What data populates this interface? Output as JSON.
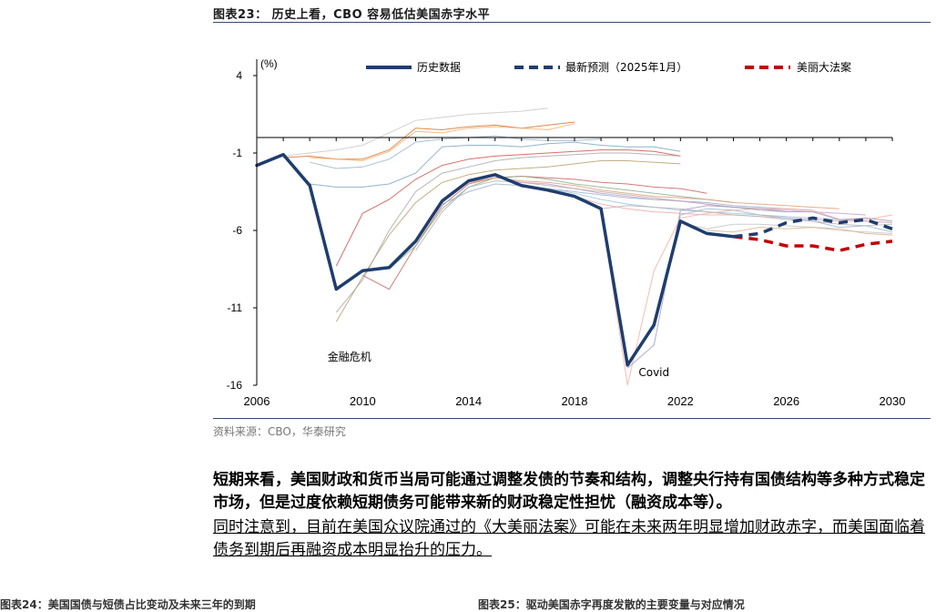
{
  "figure": {
    "title": "图表23： 历史上看，CBO 容易低估美国赤字水平",
    "source": "资料来源：CBO，华泰研究"
  },
  "chart_data": {
    "type": "line",
    "title": "历史上看，CBO 容易低估美国赤字水平",
    "ylabel": "(%)",
    "xlim": [
      2006,
      2030
    ],
    "ylim": [
      -16,
      5
    ],
    "x_ticks": [
      2006,
      2010,
      2014,
      2018,
      2022,
      2026,
      2030
    ],
    "y_ticks": [
      4,
      -1,
      -6,
      -11,
      -16
    ],
    "legend": [
      {
        "name": "历史数据",
        "color": "#1f3d6e",
        "style": "solid"
      },
      {
        "name": "最新预测（2025年1月）",
        "color": "#1f3d6e",
        "style": "dashed"
      },
      {
        "name": "美丽大法案",
        "color": "#c00000",
        "style": "dashed"
      }
    ],
    "annotations": [
      {
        "text": "金融危机",
        "x": 2009.5,
        "y": -14.4
      },
      {
        "text": "Covid",
        "x": 2021,
        "y": -15.4
      }
    ],
    "series": [
      {
        "name": "历史数据",
        "x": [
          2006,
          2007,
          2008,
          2009,
          2010,
          2011,
          2012,
          2013,
          2014,
          2015,
          2016,
          2017,
          2018,
          2019,
          2020,
          2021,
          2022,
          2023,
          2024
        ],
        "values": [
          -1.8,
          -1.1,
          -3.1,
          -9.8,
          -8.6,
          -8.4,
          -6.7,
          -4.1,
          -2.8,
          -2.4,
          -3.1,
          -3.4,
          -3.8,
          -4.6,
          -14.7,
          -12.1,
          -5.4,
          -6.2,
          -6.4
        ]
      },
      {
        "name": "最新预测（2025年1月）",
        "x": [
          2024,
          2025,
          2026,
          2027,
          2028,
          2029,
          2030
        ],
        "values": [
          -6.4,
          -6.2,
          -5.5,
          -5.2,
          -5.5,
          -5.3,
          -5.9
        ]
      },
      {
        "name": "美丽大法案",
        "x": [
          2024,
          2025,
          2026,
          2027,
          2028,
          2029,
          2030
        ],
        "values": [
          -6.4,
          -6.6,
          -7.0,
          -7.0,
          -7.3,
          -6.9,
          -6.7
        ]
      }
    ],
    "historical_forecasts": [
      {
        "x": [
          2007,
          2008,
          2009,
          2010,
          2011,
          2012,
          2013,
          2014,
          2015,
          2016,
          2017
        ],
        "values": [
          -1.2,
          -1.0,
          -0.8,
          -0.5,
          0.3,
          1.1,
          1.3,
          1.5,
          1.6,
          1.7,
          1.9
        ],
        "color": "#c8c8c8"
      },
      {
        "x": [
          2007,
          2008,
          2009,
          2010,
          2011,
          2012,
          2013,
          2014,
          2015,
          2016,
          2017,
          2018
        ],
        "values": [
          -1.3,
          -1.2,
          -1.4,
          -1.4,
          -0.8,
          0.6,
          0.5,
          0.7,
          0.8,
          0.6,
          0.8,
          1.0
        ],
        "color": "#e0712b"
      },
      {
        "x": [
          2008,
          2009,
          2010,
          2011,
          2012,
          2013,
          2014,
          2015,
          2016,
          2017,
          2018
        ],
        "values": [
          -1.3,
          -1.4,
          -1.5,
          -0.9,
          0.4,
          0.3,
          0.6,
          0.7,
          0.6,
          0.5,
          0.9
        ],
        "color": "#f0b26e"
      },
      {
        "x": [
          2008,
          2009,
          2010,
          2011,
          2012,
          2013,
          2014,
          2015,
          2016,
          2017,
          2018,
          2019
        ],
        "values": [
          -1.6,
          -2.0,
          -1.9,
          -1.4,
          -0.3,
          -0.1,
          0.0,
          0.1,
          -0.1,
          -0.2,
          -0.2,
          -0.1
        ],
        "color": "#9bb5c8"
      },
      {
        "x": [
          2008,
          2009,
          2010,
          2011,
          2012,
          2013,
          2014,
          2015,
          2016,
          2017,
          2018,
          2019,
          2020,
          2021,
          2022
        ],
        "values": [
          -3.0,
          -3.2,
          -3.2,
          -3.0,
          -2.3,
          -0.6,
          -0.5,
          -0.5,
          -0.6,
          -0.4,
          -0.3,
          -0.5,
          -0.6,
          -0.6,
          -0.9
        ],
        "color": "#7fa7c2"
      },
      {
        "x": [
          2009,
          2010,
          2011,
          2012,
          2013,
          2014,
          2015,
          2016,
          2017,
          2018,
          2019,
          2020,
          2021,
          2022
        ],
        "values": [
          -8.3,
          -4.9,
          -4.0,
          -2.7,
          -1.8,
          -1.4,
          -1.2,
          -1.1,
          -1.0,
          -0.9,
          -0.8,
          -0.8,
          -0.9,
          -1.2
        ],
        "color": "#d4554d"
      },
      {
        "x": [
          2009,
          2010,
          2011,
          2012,
          2013,
          2014,
          2015,
          2016,
          2017,
          2018,
          2019,
          2020,
          2021,
          2022
        ],
        "values": [
          -11.3,
          -9.2,
          -6.0,
          -3.5,
          -2.3,
          -1.9,
          -1.5,
          -1.3,
          -1.2,
          -1.1,
          -1.0,
          -1.0,
          -1.1,
          -1.2
        ],
        "color": "#a9a9a9"
      },
      {
        "x": [
          2009,
          2010,
          2011,
          2012,
          2013,
          2014,
          2015,
          2016,
          2017,
          2018,
          2019,
          2020,
          2021,
          2022
        ],
        "values": [
          -11.9,
          -9.0,
          -6.3,
          -4.2,
          -2.9,
          -2.4,
          -2.1,
          -2.0,
          -1.9,
          -1.7,
          -1.5,
          -1.5,
          -1.6,
          -1.7
        ],
        "color": "#b9a26d"
      },
      {
        "x": [
          2010,
          2011,
          2012,
          2013,
          2014,
          2015,
          2016,
          2017,
          2018,
          2019,
          2020,
          2021,
          2022,
          2023
        ],
        "values": [
          -8.9,
          -9.8,
          -7.0,
          -4.4,
          -3.0,
          -2.6,
          -2.5,
          -2.6,
          -2.7,
          -2.9,
          -3.0,
          -3.2,
          -3.3,
          -3.6
        ],
        "color": "#c86464"
      },
      {
        "x": [
          2011,
          2012,
          2013,
          2014,
          2015,
          2016,
          2017,
          2018,
          2019,
          2020,
          2021,
          2022,
          2023,
          2024
        ],
        "values": [
          -8.5,
          -7.0,
          -4.6,
          -3.2,
          -2.6,
          -2.5,
          -2.7,
          -3.0,
          -3.2,
          -3.4,
          -3.6,
          -3.8,
          -4.0,
          -4.2
        ],
        "color": "#8cb08c"
      },
      {
        "x": [
          2012,
          2013,
          2014,
          2015,
          2016,
          2017,
          2018,
          2019,
          2020,
          2021,
          2022,
          2023,
          2024,
          2025,
          2026
        ],
        "values": [
          -7.3,
          -4.8,
          -3.2,
          -2.8,
          -2.9,
          -3.1,
          -3.3,
          -3.5,
          -3.7,
          -3.9,
          -4.1,
          -4.3,
          -4.5,
          -4.7,
          -4.8
        ],
        "color": "#b4b4b4"
      },
      {
        "x": [
          2013,
          2014,
          2015,
          2016,
          2017,
          2018,
          2019,
          2020,
          2021,
          2022,
          2023,
          2024,
          2025,
          2026,
          2027
        ],
        "values": [
          -4.3,
          -3.5,
          -3.0,
          -3.1,
          -3.3,
          -3.5,
          -3.7,
          -3.9,
          -4.0,
          -4.1,
          -4.2,
          -4.4,
          -4.5,
          -4.6,
          -4.7
        ],
        "color": "#9fb0cc"
      },
      {
        "x": [
          2014,
          2015,
          2016,
          2017,
          2018,
          2019,
          2020,
          2021,
          2022,
          2023,
          2024,
          2025,
          2026,
          2027,
          2028
        ],
        "values": [
          -2.9,
          -2.6,
          -2.8,
          -2.9,
          -3.1,
          -3.4,
          -3.6,
          -3.8,
          -3.9,
          -4.0,
          -4.2,
          -4.3,
          -4.4,
          -4.5,
          -4.6
        ],
        "color": "#e3a07a"
      },
      {
        "x": [
          2015,
          2016,
          2017,
          2018,
          2019,
          2020,
          2021,
          2022,
          2023,
          2024,
          2025,
          2026,
          2027,
          2028,
          2029
        ],
        "values": [
          -2.5,
          -2.9,
          -3.0,
          -3.3,
          -3.6,
          -3.8,
          -4.0,
          -4.1,
          -4.3,
          -4.5,
          -4.6,
          -4.7,
          -4.8,
          -4.9,
          -5.0
        ],
        "color": "#c9a0c9"
      },
      {
        "x": [
          2016,
          2017,
          2018,
          2019,
          2020,
          2021,
          2022,
          2023,
          2024,
          2025,
          2026,
          2027,
          2028,
          2029,
          2030
        ],
        "values": [
          -3.2,
          -3.3,
          -3.6,
          -4.0,
          -4.3,
          -4.5,
          -4.7,
          -4.8,
          -4.9,
          -5.0,
          -5.1,
          -5.2,
          -5.3,
          -5.4,
          -5.5
        ],
        "color": "#a0c4d8"
      },
      {
        "x": [
          2017,
          2018,
          2019,
          2020,
          2021,
          2022,
          2023,
          2024,
          2025,
          2026,
          2027,
          2028,
          2029,
          2030
        ],
        "values": [
          -3.5,
          -3.8,
          -4.3,
          -4.6,
          -4.8,
          -4.9,
          -5.0,
          -5.0,
          -5.1,
          -5.2,
          -5.3,
          -5.4,
          -5.4,
          -5.5
        ],
        "color": "#f0a8a8"
      },
      {
        "x": [
          2018,
          2019,
          2020,
          2021,
          2022,
          2023,
          2024,
          2025,
          2026,
          2027,
          2028,
          2029,
          2030
        ],
        "values": [
          -3.9,
          -4.6,
          -4.4,
          -4.5,
          -4.6,
          -4.8,
          -5.0,
          -5.1,
          -5.3,
          -5.4,
          -5.6,
          -5.7,
          -5.6
        ],
        "color": "#b7b7b7"
      },
      {
        "x": [
          2019,
          2020,
          2021,
          2022,
          2023,
          2024,
          2025,
          2026,
          2027,
          2028,
          2029,
          2030
        ],
        "values": [
          -4.6,
          -16.0,
          -8.6,
          -5.2,
          -4.9,
          -4.7,
          -4.6,
          -4.6,
          -4.7,
          -5.3,
          -5.3,
          -5.0
        ],
        "color": "#f2b2a6"
      },
      {
        "x": [
          2020,
          2021,
          2022,
          2023,
          2024,
          2025,
          2026,
          2027,
          2028,
          2029,
          2030
        ],
        "values": [
          -14.9,
          -13.4,
          -4.7,
          -4.4,
          -4.5,
          -4.6,
          -4.8,
          -4.8,
          -5.3,
          -5.2,
          -5.4
        ],
        "color": "#a89ac0"
      },
      {
        "x": [
          2021,
          2022,
          2023,
          2024,
          2025,
          2026,
          2027,
          2028,
          2029,
          2030
        ],
        "values": [
          -12.4,
          -5.0,
          -4.6,
          -4.7,
          -5.0,
          -5.2,
          -5.4,
          -5.8,
          -5.7,
          -6.1
        ],
        "color": "#9ab5d6"
      },
      {
        "x": [
          2022,
          2023,
          2024,
          2025,
          2026,
          2027,
          2028,
          2029,
          2030
        ],
        "values": [
          -5.5,
          -5.9,
          -5.6,
          -5.6,
          -5.7,
          -5.8,
          -6.0,
          -6.1,
          -6.2
        ],
        "color": "#c4c4c4"
      },
      {
        "x": [
          2023,
          2024,
          2025,
          2026,
          2027,
          2028,
          2029,
          2030
        ],
        "values": [
          -6.0,
          -6.1,
          -5.8,
          -5.9,
          -5.8,
          -5.9,
          -6.2,
          -6.3
        ],
        "color": "#d8b48c"
      }
    ]
  },
  "paragraphs": {
    "p1": "短期来看，美国财政和货币当局可能通过调整发债的节奏和结构，调整央行持有国债结构等多种方式稳定市场，但是过度依赖短期债务可能带来新的财政稳定性担忧（融资成本等）。",
    "p2": "同时注意到，目前在美国众议院通过的《大美丽法案》可能在未来两年明显增加财政赤字，而美国面临着债务到期后再融资成本明显抬升的压力。"
  },
  "footer": {
    "left": "图表24：美国国债与短债占比变动及未来三年的到期",
    "right": "图表25：驱动美国赤字再度发散的主要变量与对应情况"
  }
}
